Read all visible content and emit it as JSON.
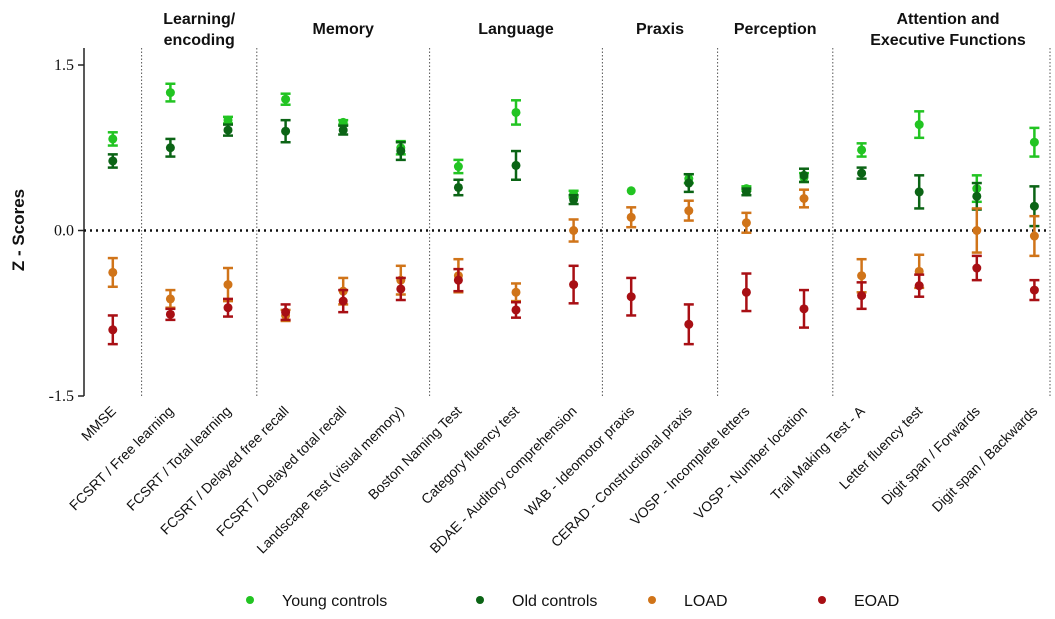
{
  "chart_data": {
    "type": "errorbar",
    "y_label": "Z - Scores",
    "groups": [
      [
        "Learning/",
        "encoding"
      ],
      [
        "Memory"
      ],
      [
        "Language"
      ],
      [
        "Praxis"
      ],
      [
        "Perception"
      ],
      [
        "Attention and",
        "Executive Functions"
      ]
    ],
    "categories": [
      "MMSE",
      "FCSRT / Free learning",
      "FCSRT / Total learning",
      "FCSRT / Delayed free recall",
      "FCSRT / Delayed total recall",
      "Landscape Test (visual memory)",
      "Boston Naming Test",
      "Category fluency test",
      "BDAE - Auditory comprehension",
      "WAB - Ideomotor praxis",
      "CERAD - Constructional praxis",
      "VOSP - Incomplete letters",
      "VOSP - Number location",
      "Trail Making Test - A",
      "Letter fluency test",
      "Digit span / Forwards",
      "Digit span / Backwards"
    ],
    "series": [
      {
        "name": "Young controls",
        "color": "#22c422",
        "values": [
          0.83,
          1.25,
          1.0,
          1.19,
          0.98,
          0.75,
          0.58,
          1.07,
          0.33,
          0.36,
          0.47,
          0.38,
          0.48,
          0.73,
          0.96,
          0.38,
          0.8
        ],
        "errors": [
          0.06,
          0.08,
          0.03,
          0.05,
          0.02,
          0.06,
          0.06,
          0.11,
          0.03,
          0,
          0.04,
          0.02,
          0.04,
          0.06,
          0.12,
          0.12,
          0.13
        ]
      },
      {
        "name": "Old controls",
        "color": "#0b6415",
        "values": [
          0.63,
          0.75,
          0.91,
          0.9,
          0.91,
          0.72,
          0.39,
          0.59,
          0.28,
          null,
          0.43,
          0.35,
          0.5,
          0.52,
          0.35,
          0.31,
          0.22
        ],
        "errors": [
          0.06,
          0.08,
          0.05,
          0.1,
          0.04,
          0.08,
          0.07,
          0.13,
          0.04,
          null,
          0.08,
          0.03,
          0.06,
          0.05,
          0.15,
          0.12,
          0.18
        ]
      },
      {
        "name": "LOAD",
        "color": "#d07419",
        "values": [
          -0.38,
          -0.62,
          -0.49,
          -0.77,
          -0.55,
          -0.45,
          -0.41,
          -0.56,
          0.0,
          0.12,
          0.18,
          0.07,
          0.29,
          -0.41,
          -0.37,
          0.0,
          -0.05
        ],
        "errors": [
          0.13,
          0.08,
          0.15,
          0.05,
          0.12,
          0.13,
          0.15,
          0.08,
          0.1,
          0.09,
          0.09,
          0.09,
          0.08,
          0.15,
          0.15,
          0.2,
          0.18
        ]
      },
      {
        "name": "EOAD",
        "color": "#a80f14",
        "values": [
          -0.9,
          -0.76,
          -0.7,
          -0.74,
          -0.64,
          -0.53,
          -0.45,
          -0.72,
          -0.49,
          -0.6,
          -0.85,
          -0.56,
          -0.71,
          -0.59,
          -0.5,
          -0.34,
          -0.54
        ],
        "errors": [
          0.13,
          0.05,
          0.08,
          0.07,
          0.1,
          0.1,
          0.1,
          0.07,
          0.17,
          0.17,
          0.18,
          0.17,
          0.17,
          0.12,
          0.1,
          0.11,
          0.09
        ]
      }
    ],
    "ylim": [
      -1.5,
      1.5
    ],
    "yticks": [
      -1.5,
      {
        "value": 0,
        "label": "0.0"
      },
      1.5
    ],
    "reference_line": 0
  }
}
